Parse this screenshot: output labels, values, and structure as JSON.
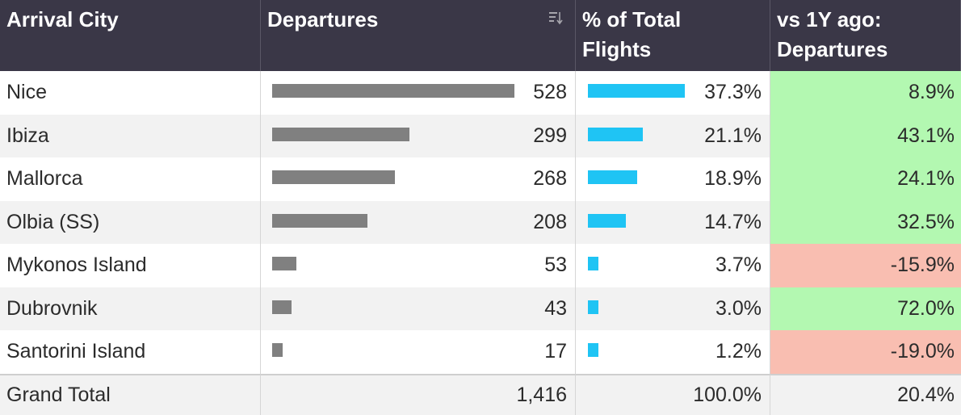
{
  "headers": {
    "city": "Arrival City",
    "departures": "Departures",
    "pct_line1": "% of Total",
    "pct_line2": "Flights",
    "yoy_line1": "vs 1Y ago:",
    "yoy_line2": "Departures"
  },
  "colors": {
    "header_bg": "#3a3747",
    "dep_bar": "#808080",
    "pct_bar": "#1fc4f4",
    "positive": "#b3f8b1",
    "negative": "#f9beb1"
  },
  "rows": [
    {
      "city": "Nice",
      "departures": "528",
      "dep_value": 528,
      "pct": "37.3%",
      "pct_value": 37.3,
      "yoy": "8.9%",
      "yoy_value": 8.9
    },
    {
      "city": "Ibiza",
      "departures": "299",
      "dep_value": 299,
      "pct": "21.1%",
      "pct_value": 21.1,
      "yoy": "43.1%",
      "yoy_value": 43.1
    },
    {
      "city": "Mallorca",
      "departures": "268",
      "dep_value": 268,
      "pct": "18.9%",
      "pct_value": 18.9,
      "yoy": "24.1%",
      "yoy_value": 24.1
    },
    {
      "city": "Olbia (SS)",
      "departures": "208",
      "dep_value": 208,
      "pct": "14.7%",
      "pct_value": 14.7,
      "yoy": "32.5%",
      "yoy_value": 32.5
    },
    {
      "city": "Mykonos Island",
      "departures": "53",
      "dep_value": 53,
      "pct": "3.7%",
      "pct_value": 3.7,
      "yoy": "-15.9%",
      "yoy_value": -15.9
    },
    {
      "city": "Dubrovnik",
      "departures": "43",
      "dep_value": 43,
      "pct": "3.0%",
      "pct_value": 3.0,
      "yoy": "72.0%",
      "yoy_value": 72.0
    },
    {
      "city": "Santorini Island",
      "departures": "17",
      "dep_value": 17,
      "pct": "1.2%",
      "pct_value": 1.2,
      "yoy": "-19.0%",
      "yoy_value": -19.0
    }
  ],
  "total": {
    "label": "Grand Total",
    "departures": "1,416",
    "pct": "100.0%",
    "yoy": "20.4%"
  }
}
